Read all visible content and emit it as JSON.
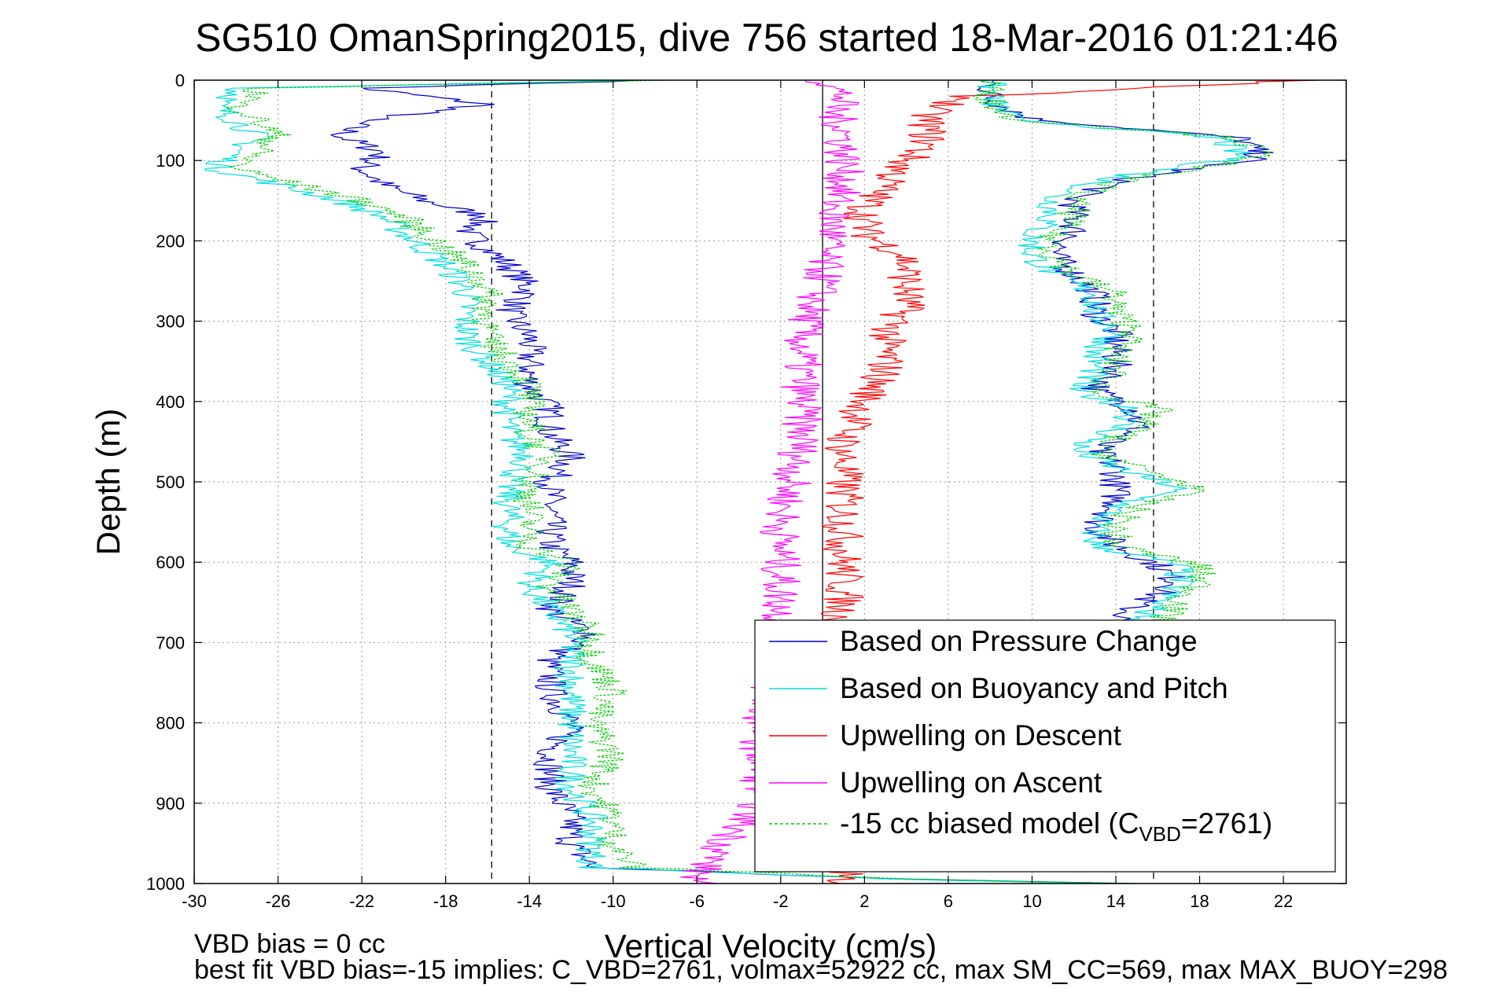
{
  "title": "SG510 OmanSpring2015, dive 756 started 18-Mar-2016 01:21:46",
  "footer": {
    "line1": "VBD bias = 0 cc",
    "line2": "best fit VBD bias=-15 implies: C_VBD=2761, volmax=52922 cc, max SM_CC=569, max MAX_BUOY=298"
  },
  "chart_data": {
    "type": "line",
    "title": "SG510 OmanSpring2015, dive 756 started 18-Mar-2016 01:21:46",
    "xlabel": "Vertical Velocity (cm/s)",
    "ylabel": "Depth (m)",
    "xlim": [
      -30,
      25
    ],
    "ylim": [
      0,
      1000
    ],
    "y_reversed": true,
    "grid": true,
    "x_ticks": [
      -30,
      -26,
      -22,
      -18,
      -14,
      -10,
      -6,
      -2,
      2,
      6,
      10,
      14,
      18,
      22
    ],
    "y_ticks": [
      0,
      100,
      200,
      300,
      400,
      500,
      600,
      700,
      800,
      900,
      1000
    ],
    "reference_lines": [
      {
        "x": -15.8,
        "style": "dashed",
        "color": "#000000"
      },
      {
        "x": 0,
        "style": "solid",
        "color": "#000000"
      },
      {
        "x": 15.8,
        "style": "dashed",
        "color": "#000000"
      }
    ],
    "legend_position": "bottom-right",
    "legend": [
      {
        "label": "Based on Pressure Change",
        "color": "#0000cc",
        "style": "solid"
      },
      {
        "label": "Based on Buoyancy and Pitch",
        "color": "#00dddd",
        "style": "solid"
      },
      {
        "label": "Upwelling on Descent",
        "color": "#ff0000",
        "style": "solid"
      },
      {
        "label": "Upwelling on Ascent",
        "color": "#ff00ff",
        "style": "solid"
      },
      {
        "label_main": "-15 cc biased model (C",
        "label_sub": "VBD",
        "label_tail": "=2761)",
        "color": "#00cc00",
        "style": "dashed"
      }
    ],
    "series": [
      {
        "color": "#0000cc",
        "depth": [
          0,
          10,
          20,
          30,
          50,
          70,
          90,
          110,
          130,
          150,
          170,
          190,
          210,
          230,
          260,
          290,
          320,
          350,
          380,
          410,
          440,
          470,
          500,
          540,
          580,
          600,
          630,
          660,
          690,
          720,
          760,
          800,
          840,
          880,
          920,
          950,
          980,
          995,
          1000
        ],
        "velocity": [
          -8,
          -22,
          -19,
          -16,
          -22,
          -23,
          -21,
          -22,
          -21,
          -19,
          -16,
          -17,
          -16,
          -15,
          -14,
          -15,
          -14,
          -14,
          -14,
          -13,
          -13,
          -12,
          -13,
          -13,
          -13,
          -12,
          -12,
          -13,
          -11,
          -13,
          -13,
          -12,
          -13,
          -13,
          -12,
          -12,
          -11,
          4,
          15
        ],
        "velocity_ascent": [
          8,
          8,
          10,
          20,
          21,
          15,
          12,
          12,
          12,
          11,
          12,
          13,
          13,
          14,
          14,
          14,
          13,
          15,
          15,
          13,
          14,
          14,
          14,
          13,
          14,
          16,
          17,
          15,
          14,
          14
        ]
      },
      {
        "color": "#00dddd",
        "depth": [
          0,
          10,
          20,
          30,
          50,
          70,
          90,
          110,
          130,
          150,
          170,
          190,
          210,
          230,
          260,
          290,
          320,
          350,
          380,
          410,
          440,
          470,
          500,
          540,
          580,
          600,
          630,
          660,
          690,
          720,
          760,
          800,
          840,
          880,
          920,
          950,
          980,
          995,
          1000
        ],
        "velocity": [
          -8,
          -28,
          -28,
          -29,
          -28,
          -27,
          -28,
          -29,
          -26,
          -23,
          -21,
          -20,
          -19,
          -18,
          -17,
          -17,
          -17,
          -16,
          -15,
          -15,
          -15,
          -14,
          -15,
          -15,
          -15,
          -13,
          -14,
          -13,
          -12,
          -12,
          -12,
          -12,
          -12,
          -12,
          -11,
          -11,
          -11,
          4,
          14
        ],
        "velocity_ascent": [
          8,
          8,
          9,
          19,
          20,
          14,
          11,
          11,
          10,
          10,
          11,
          13,
          13,
          14,
          13,
          13,
          12,
          15,
          14,
          12,
          14,
          17,
          14,
          13,
          13,
          17,
          17,
          16,
          15,
          14
        ]
      },
      {
        "color": "#ff0000",
        "depth": [
          0,
          20,
          40,
          60,
          80,
          100,
          130,
          160,
          190,
          220,
          250,
          280,
          320,
          360,
          400,
          450,
          500,
          550,
          600,
          650,
          700,
          800,
          900,
          990
        ],
        "velocity": [
          23,
          7,
          5,
          5,
          5,
          4,
          3,
          2,
          2,
          4,
          4,
          4,
          3,
          3,
          2,
          1,
          1,
          1,
          1,
          1,
          0.5,
          0.5,
          0.5,
          1
        ]
      },
      {
        "color": "#ff00ff",
        "depth": [
          0,
          20,
          40,
          60,
          80,
          100,
          130,
          160,
          190,
          220,
          250,
          280,
          320,
          360,
          400,
          450,
          500,
          550,
          600,
          650,
          700,
          800,
          900,
          990
        ],
        "velocity": [
          0,
          1,
          0.5,
          1,
          1,
          1,
          1,
          0.5,
          0.5,
          0,
          0,
          -0.5,
          -1,
          -1,
          -1,
          -1,
          -1.5,
          -2,
          -2,
          -2,
          -2,
          -3,
          -3,
          -6
        ]
      },
      {
        "color": "#00cc00",
        "depth": [
          0,
          10,
          20,
          30,
          50,
          70,
          90,
          110,
          130,
          150,
          170,
          190,
          210,
          230,
          260,
          290,
          320,
          350,
          380,
          410,
          440,
          470,
          500,
          540,
          580,
          600,
          630,
          660,
          690,
          720,
          760,
          800,
          840,
          880,
          920,
          950,
          980,
          995,
          1000
        ],
        "velocity": [
          -8,
          -27,
          -27,
          -28,
          -27,
          -26,
          -27,
          -28,
          -25,
          -22,
          -20,
          -19,
          -18,
          -17,
          -16,
          -16,
          -16,
          -15,
          -14,
          -14,
          -14,
          -13,
          -14,
          -14,
          -14,
          -12,
          -13,
          -12,
          -11,
          -11,
          -10,
          -11,
          -10,
          -11,
          -10,
          -10,
          -9,
          5,
          15
        ],
        "velocity_ascent": [
          8,
          8,
          9,
          20,
          21,
          15,
          12,
          12,
          11,
          11,
          12,
          14,
          14,
          15,
          14,
          14,
          13,
          16,
          15,
          13,
          15,
          18,
          15,
          14,
          14,
          18,
          18,
          17,
          16,
          15
        ]
      }
    ]
  }
}
